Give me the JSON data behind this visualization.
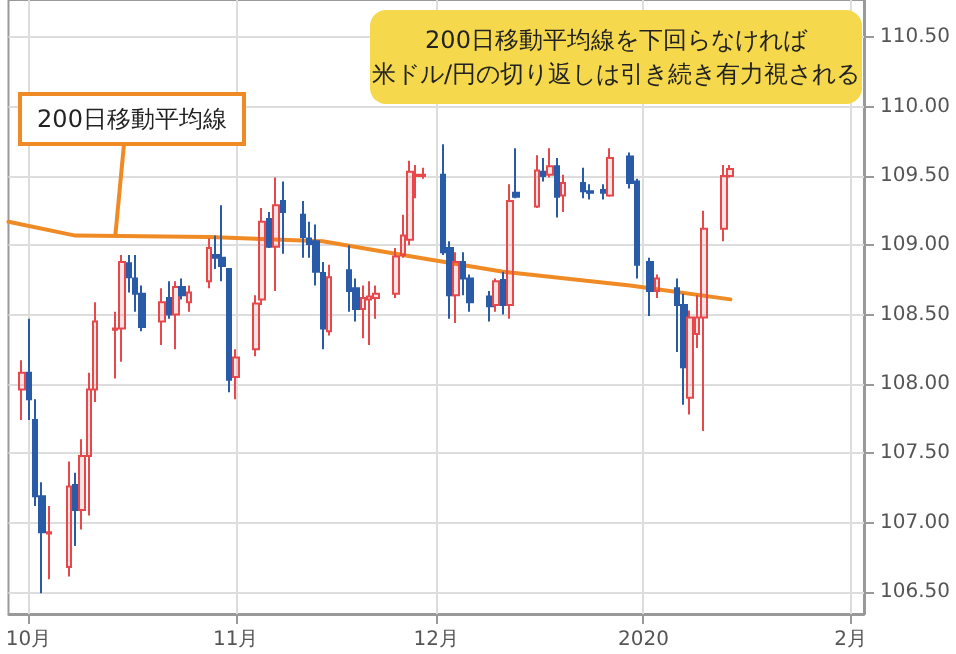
{
  "chart_data": {
    "type": "candlestick",
    "annotations": [
      "200日移動平均線を下回らなければ",
      "米ドル/円の切り返しは引き続き有力視される"
    ],
    "xlim": [
      "2019-09-28",
      "2020-02-03"
    ],
    "xticks": [
      {
        "value": "2019-10-01",
        "label": "10月"
      },
      {
        "value": "2019-11-01",
        "label": "11月"
      },
      {
        "value": "2019-12-01",
        "label": "12月"
      },
      {
        "value": "2020-01-01",
        "label": "2020"
      },
      {
        "value": "2020-02-01",
        "label": "2月"
      }
    ],
    "ylim": [
      106.34,
      110.77
    ],
    "yticks": [
      {
        "value": 106.5,
        "label": "106.50"
      },
      {
        "value": 107,
        "label": "107.00"
      },
      {
        "value": 107.5,
        "label": "107.50"
      },
      {
        "value": 108,
        "label": "108.00"
      },
      {
        "value": 108.5,
        "label": "108.50"
      },
      {
        "value": 109,
        "label": "109.00"
      },
      {
        "value": 109.5,
        "label": "109.50"
      },
      {
        "value": 110,
        "label": "110.00"
      },
      {
        "value": 110.5,
        "label": "110.50"
      }
    ],
    "grid": true,
    "series": [
      {
        "colors": [
          "#e8474b",
          "#2a5ba8",
          "#2a5ba8",
          "#2a5ba8",
          "#e8474b",
          "#e8474b",
          "#2a5ba8",
          "#e8474b",
          "#e8474b",
          "#e8474b",
          "#e8474b",
          "#e8474b",
          "#2a5ba8",
          "#2a5ba8",
          "#2a5ba8",
          "#e8474b",
          "#2a5ba8",
          "#e8474b",
          "#2a5ba8",
          "#e8474b",
          "#e8474b",
          "#2a5ba8",
          "#2a5ba8",
          "#2a5ba8",
          "#e8474b",
          "#e8474b",
          "#e8474b",
          "#2a5ba8",
          "#e8474b",
          "#2a5ba8",
          "#2a5ba8",
          "#2a5ba8",
          "#2a5ba8",
          "#2a5ba8",
          "#e8474b",
          "#2a5ba8",
          "#2a5ba8",
          "#e8474b",
          "#e8474b",
          "#e8474b",
          "#e8474b",
          "#e8474b",
          "#e8474b",
          "#e8474b",
          "#e8474b",
          "#2a5ba8",
          "#2a5ba8",
          "#e8474b",
          "#2a5ba8",
          "#2a5ba8",
          "#2a5ba8",
          "#e8474b",
          "#2a5ba8",
          "#e8474b",
          "#2a5ba8",
          "#e8474b",
          "#2a5ba8",
          "#e8474b",
          "#2a5ba8",
          "#e8474b",
          "#2a5ba8",
          "#2a5ba8",
          "#2a5ba8",
          "#e8474b",
          "#2a5ba8",
          "#2a5ba8",
          "#2a5ba8",
          "#e8474b",
          "#2a5ba8",
          "#2a5ba8",
          "#e8474b",
          "#e8474b",
          "#e8474b",
          "#e8474b",
          "#e8474b"
        ],
        "x": [
          "2019-09-30",
          "2019-10-01",
          "2019-10-02",
          "2019-10-03",
          "2019-10-04",
          "2019-10-07",
          "2019-10-08",
          "2019-10-09",
          "2019-10-10",
          "2019-10-11",
          "2019-10-14",
          "2019-10-15",
          "2019-10-16",
          "2019-10-17",
          "2019-10-18",
          "2019-10-21",
          "2019-10-22",
          "2019-10-23",
          "2019-10-24",
          "2019-10-25",
          "2019-10-28",
          "2019-10-29",
          "2019-10-30",
          "2019-10-31",
          "2019-11-01",
          "2019-11-04",
          "2019-11-05",
          "2019-11-06",
          "2019-11-07",
          "2019-11-08",
          "2019-11-11",
          "2019-11-12",
          "2019-11-13",
          "2019-11-14",
          "2019-11-15",
          "2019-11-18",
          "2019-11-19",
          "2019-11-20",
          "2019-11-21",
          "2019-11-22",
          "2019-11-25",
          "2019-11-26",
          "2019-11-27",
          "2019-11-28",
          "2019-11-29",
          "2019-12-02",
          "2019-12-03",
          "2019-12-04",
          "2019-12-05",
          "2019-12-06",
          "2019-12-09",
          "2019-12-10",
          "2019-12-11",
          "2019-12-12",
          "2019-12-13",
          "2019-12-16",
          "2019-12-17",
          "2019-12-18",
          "2019-12-19",
          "2019-12-20",
          "2019-12-23",
          "2019-12-24",
          "2019-12-26",
          "2019-12-27",
          "2019-12-30",
          "2019-12-31",
          "2020-01-02",
          "2020-01-03",
          "2020-01-06",
          "2020-01-07",
          "2020-01-08",
          "2020-01-09",
          "2020-01-10",
          "2020-01-13",
          "2020-01-14"
        ],
        "ohlc": [
          [
            107.96,
            108.17,
            107.74,
            108.08
          ],
          [
            108.08,
            108.47,
            107.74,
            107.89
          ],
          [
            107.74,
            107.89,
            107.12,
            107.19
          ],
          [
            107.19,
            107.29,
            106.49,
            106.93
          ],
          [
            106.92,
            107.12,
            106.59,
            106.93
          ],
          [
            106.68,
            107.44,
            106.61,
            107.26
          ],
          [
            107.27,
            107.36,
            106.83,
            107.09
          ],
          [
            107.09,
            107.6,
            106.95,
            107.48
          ],
          [
            107.48,
            108.08,
            107.05,
            107.96
          ],
          [
            107.96,
            108.59,
            107.87,
            108.45
          ],
          [
            108.39,
            108.52,
            108.04,
            108.4
          ],
          [
            108.4,
            108.93,
            108.16,
            108.88
          ],
          [
            108.87,
            108.93,
            108.66,
            108.77
          ],
          [
            108.76,
            108.93,
            108.52,
            108.65
          ],
          [
            108.65,
            108.71,
            108.38,
            108.41
          ],
          [
            108.45,
            108.69,
            108.28,
            108.59
          ],
          [
            108.62,
            108.74,
            108.47,
            108.5
          ],
          [
            108.5,
            108.74,
            108.25,
            108.7
          ],
          [
            108.7,
            108.76,
            108.61,
            108.64
          ],
          [
            108.59,
            108.71,
            108.52,
            108.66
          ],
          [
            108.74,
            109.05,
            108.69,
            108.98
          ],
          [
            108.93,
            109.07,
            108.83,
            108.91
          ],
          [
            108.91,
            109.29,
            108.74,
            108.85
          ],
          [
            108.83,
            108.83,
            107.94,
            108.03
          ],
          [
            108.05,
            108.25,
            107.89,
            108.19
          ],
          [
            108.25,
            108.64,
            108.2,
            108.58
          ],
          [
            108.61,
            109.27,
            108.57,
            109.17
          ],
          [
            109.19,
            109.24,
            108.98,
            108.99
          ],
          [
            108.99,
            109.49,
            108.67,
            109.29
          ],
          [
            109.32,
            109.46,
            108.94,
            109.24
          ],
          [
            109.22,
            109.32,
            108.91,
            109.06
          ],
          [
            109.05,
            109.17,
            108.91,
            109.01
          ],
          [
            109.03,
            109.15,
            108.71,
            108.81
          ],
          [
            108.8,
            108.88,
            108.25,
            108.4
          ],
          [
            108.38,
            108.86,
            108.35,
            108.77
          ],
          [
            108.82,
            109,
            108.52,
            108.67
          ],
          [
            108.69,
            108.76,
            108.45,
            108.54
          ],
          [
            108.54,
            108.71,
            108.33,
            108.62
          ],
          [
            108.61,
            108.74,
            108.28,
            108.63
          ],
          [
            108.62,
            108.71,
            108.47,
            108.65
          ],
          [
            108.65,
            108.98,
            108.62,
            108.92
          ],
          [
            108.93,
            109.22,
            108.91,
            109.07
          ],
          [
            109.04,
            109.61,
            109,
            109.53
          ],
          [
            109.5,
            109.58,
            109.34,
            109.51
          ],
          [
            109.5,
            109.56,
            109.48,
            109.51
          ],
          [
            109.51,
            109.73,
            108.93,
            108.95
          ],
          [
            108.98,
            109.03,
            108.47,
            108.64
          ],
          [
            108.64,
            108.95,
            108.44,
            108.88
          ],
          [
            108.88,
            108.95,
            108.64,
            108.76
          ],
          [
            108.76,
            108.79,
            108.52,
            108.59
          ],
          [
            108.63,
            108.67,
            108.45,
            108.56
          ],
          [
            108.57,
            108.76,
            108.52,
            108.74
          ],
          [
            108.75,
            108.81,
            108.5,
            108.57
          ],
          [
            108.57,
            109.44,
            108.47,
            109.32
          ],
          [
            109.38,
            109.7,
            109.34,
            109.35
          ],
          [
            109.28,
            109.65,
            109.27,
            109.54
          ],
          [
            109.53,
            109.63,
            109.46,
            109.5
          ],
          [
            109.51,
            109.7,
            109.49,
            109.57
          ],
          [
            109.57,
            109.63,
            109.2,
            109.35
          ],
          [
            109.36,
            109.51,
            109.24,
            109.45
          ],
          [
            109.45,
            109.56,
            109.34,
            109.39
          ],
          [
            109.39,
            109.44,
            109.33,
            109.38
          ],
          [
            109.4,
            109.44,
            109.33,
            109.38
          ],
          [
            109.36,
            109.7,
            109.35,
            109.63
          ],
          [
            109.64,
            109.67,
            109.41,
            109.45
          ],
          [
            109.46,
            109.48,
            108.76,
            108.86
          ],
          [
            108.88,
            108.91,
            108.49,
            108.67
          ],
          [
            108.67,
            108.79,
            108.62,
            108.76
          ],
          [
            108.69,
            108.76,
            108.23,
            108.57
          ],
          [
            108.57,
            108.65,
            107.85,
            108.12
          ],
          [
            107.9,
            108.53,
            107.78,
            108.48
          ],
          [
            108.36,
            108.64,
            108.26,
            108.48
          ],
          [
            108.48,
            109.25,
            107.66,
            109.12
          ],
          [
            109.12,
            109.58,
            109.03,
            109.5
          ],
          [
            109.5,
            109.58,
            109.49,
            109.55
          ]
        ]
      },
      {
        "type": "line",
        "name": "200日移動平均線",
        "color": "#f08a24",
        "x": [
          "2019-09-28",
          "2019-10-08",
          "2019-10-28",
          "2019-11-14",
          "2019-11-26",
          "2019-12-11",
          "2019-12-30",
          "2020-01-14"
        ],
        "values": [
          109.17,
          109.07,
          109.06,
          109.03,
          108.93,
          108.81,
          108.71,
          108.61
        ]
      }
    ]
  }
}
